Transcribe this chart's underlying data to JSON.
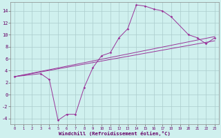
{
  "xlabel": "Windchill (Refroidissement éolien,°C)",
  "bg_color": "#cff0ee",
  "line_color": "#993399",
  "grid_color": "#aacccc",
  "xlim": [
    -0.5,
    23.5
  ],
  "ylim": [
    -5.0,
    15.5
  ],
  "xticks": [
    0,
    1,
    2,
    3,
    4,
    5,
    6,
    7,
    8,
    9,
    10,
    11,
    12,
    13,
    14,
    15,
    16,
    17,
    18,
    19,
    20,
    21,
    22,
    23
  ],
  "yticks": [
    -4,
    -2,
    0,
    2,
    4,
    6,
    8,
    10,
    12,
    14
  ],
  "curve_x": [
    0,
    3,
    4,
    5,
    6,
    7,
    8,
    9,
    10,
    11,
    12,
    13,
    14,
    15,
    16,
    17,
    18,
    20,
    21,
    22,
    23
  ],
  "curve_y": [
    3.0,
    3.5,
    2.5,
    -4.3,
    -3.3,
    -3.3,
    1.2,
    4.5,
    6.5,
    7.0,
    9.5,
    11.0,
    15.0,
    14.8,
    14.3,
    14.0,
    13.0,
    10.0,
    9.5,
    8.5,
    9.5
  ],
  "line1_x": [
    0,
    23
  ],
  "line1_y": [
    3.0,
    9.0
  ],
  "line2_x": [
    0,
    23
  ],
  "line2_y": [
    3.0,
    9.7
  ]
}
